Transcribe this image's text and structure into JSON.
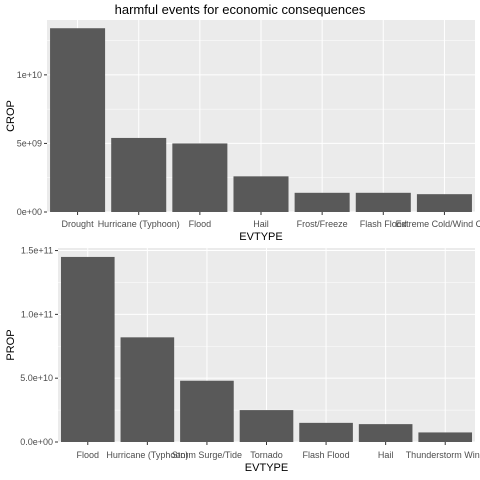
{
  "title": "harmful events for economic consequences",
  "bar_color": "#595959",
  "panel_color": "#ebebeb",
  "chart_data": [
    {
      "type": "bar",
      "xlabel": "EVTYPE",
      "ylabel": "CROP",
      "categories": [
        "Drought",
        "Hurricane (Typhoon)",
        "Flood",
        "Hail",
        "Frost/Freeze",
        "Flash Flood",
        "Extreme Cold/Wind Chill"
      ],
      "values": [
        13400000000,
        5400000000,
        5000000000,
        2600000000,
        1400000000,
        1400000000,
        1300000000
      ],
      "ylim": [
        0,
        14000000000
      ],
      "yticks": [
        0,
        5000000000,
        10000000000
      ],
      "yticklabels": [
        "0e+00",
        "5e+09",
        "1e+10"
      ],
      "grid": true
    },
    {
      "type": "bar",
      "xlabel": "EVTYPE",
      "ylabel": "PROP",
      "categories": [
        "Flood",
        "Hurricane (Typhoon)",
        "Storm Surge/Tide",
        "Tornado",
        "Flash Flood",
        "Hail",
        "Thunderstorm Wind"
      ],
      "values": [
        145000000000,
        82000000000,
        48000000000,
        25000000000,
        15000000000,
        14000000000,
        7500000000
      ],
      "ylim": [
        0,
        152000000000
      ],
      "yticks": [
        0,
        50000000000,
        100000000000,
        150000000000
      ],
      "yticklabels": [
        "0.0e+00",
        "5.0e+10",
        "1.0e+11",
        "1.5e+11"
      ],
      "grid": true
    }
  ]
}
